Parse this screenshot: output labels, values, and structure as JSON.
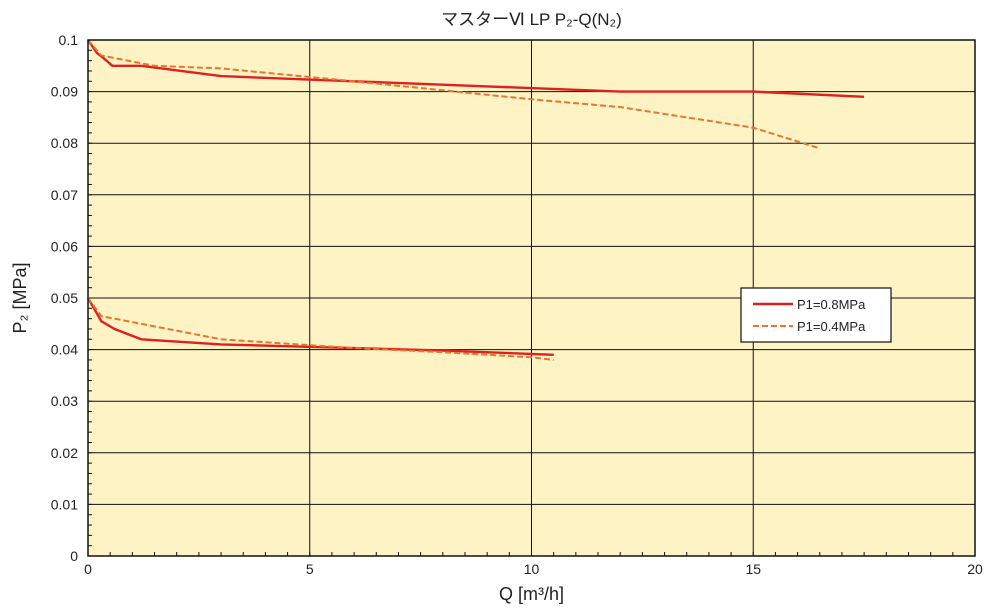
{
  "chart_data": {
    "type": "line",
    "title": "マスターⅥ LP P₂-Q(N₂)",
    "xlabel": "Q [m³/h]",
    "ylabel": "P₂ [MPa]",
    "xlim": [
      0,
      20
    ],
    "ylim": [
      0,
      0.1
    ],
    "x_ticks": [
      "0",
      "5",
      "10",
      "15",
      "20"
    ],
    "y_ticks": [
      "0",
      "0.01",
      "0.02",
      "0.03",
      "0.04",
      "0.05",
      "0.06",
      "0.07",
      "0.08",
      "0.09",
      "0.1"
    ],
    "grid": true,
    "legend_position": "right",
    "background_color": "#fdf3c4",
    "series": [
      {
        "name": "P1=0.8MPa",
        "legend": true,
        "color": "#e02020",
        "style": "solid",
        "points": [
          [
            0,
            0.1
          ],
          [
            0.2,
            0.0975
          ],
          [
            0.35,
            0.0965
          ],
          [
            0.55,
            0.095
          ],
          [
            1.2,
            0.095
          ],
          [
            3,
            0.093
          ],
          [
            6,
            0.092
          ],
          [
            9,
            0.091
          ],
          [
            12,
            0.09
          ],
          [
            15,
            0.09
          ],
          [
            17.5,
            0.089
          ]
        ]
      },
      {
        "name": "P1=0.4MPa",
        "legend": true,
        "color": "#e8762a",
        "style": "dashed",
        "points": [
          [
            0,
            0.1
          ],
          [
            0.3,
            0.097
          ],
          [
            1.5,
            0.095
          ],
          [
            3,
            0.0945
          ],
          [
            6,
            0.092
          ],
          [
            10,
            0.0885
          ],
          [
            12,
            0.087
          ],
          [
            15,
            0.083
          ],
          [
            16.5,
            0.079
          ]
        ]
      },
      {
        "name": "P1=0.8MPa",
        "legend": false,
        "color": "#e02020",
        "style": "solid",
        "points": [
          [
            0,
            0.05
          ],
          [
            0.3,
            0.0455
          ],
          [
            0.6,
            0.044
          ],
          [
            1.2,
            0.042
          ],
          [
            3,
            0.041
          ],
          [
            6,
            0.0403
          ],
          [
            8,
            0.0398
          ],
          [
            10.5,
            0.039
          ]
        ]
      },
      {
        "name": "P1=0.4MPa",
        "legend": false,
        "color": "#e8762a",
        "style": "dashed",
        "points": [
          [
            0,
            0.05
          ],
          [
            0.3,
            0.0465
          ],
          [
            1.2,
            0.045
          ],
          [
            3,
            0.042
          ],
          [
            6,
            0.0403
          ],
          [
            8,
            0.0395
          ],
          [
            10,
            0.0385
          ],
          [
            10.5,
            0.038
          ]
        ]
      }
    ]
  }
}
